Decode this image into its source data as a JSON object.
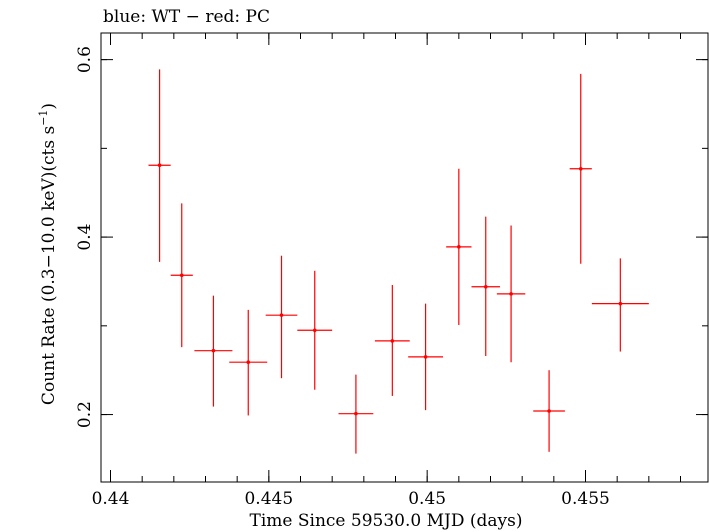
{
  "chart_data": {
    "type": "scatter",
    "title": "blue: WT − red: PC",
    "xlabel": "Time Since 59530.0 MJD (days)",
    "ylabel_main": "Count Rate (0.3−10.0 keV)(cts s",
    "ylabel_sup": "−1",
    "ylabel_close": ")",
    "xlim": [
      0.4397,
      0.4589
    ],
    "ylim": [
      0.124,
      0.63
    ],
    "x_ticks": [
      {
        "value": 0.44,
        "label": "0.44"
      },
      {
        "value": 0.445,
        "label": "0.445"
      },
      {
        "value": 0.45,
        "label": "0.45"
      },
      {
        "value": 0.455,
        "label": "0.455"
      }
    ],
    "x_minor_step": 0.001,
    "y_ticks": [
      {
        "value": 0.2,
        "label": "0.2"
      },
      {
        "value": 0.4,
        "label": "0.4"
      },
      {
        "value": 0.6,
        "label": "0.6"
      }
    ],
    "y_minor_step": 0.1,
    "grid": false,
    "series": [
      {
        "color": "#ff0000",
        "points": [
          {
            "x": 0.44155,
            "xerr": 0.00035,
            "y": 0.481,
            "ylo": 0.372,
            "yhi": 0.589
          },
          {
            "x": 0.44225,
            "xerr": 0.00035,
            "y": 0.357,
            "ylo": 0.276,
            "yhi": 0.438
          },
          {
            "x": 0.44325,
            "xerr": 0.0006,
            "y": 0.272,
            "ylo": 0.209,
            "yhi": 0.334
          },
          {
            "x": 0.44435,
            "xerr": 0.0006,
            "y": 0.259,
            "ylo": 0.199,
            "yhi": 0.318
          },
          {
            "x": 0.4454,
            "xerr": 0.0005,
            "y": 0.312,
            "ylo": 0.241,
            "yhi": 0.379
          },
          {
            "x": 0.44645,
            "xerr": 0.00055,
            "y": 0.295,
            "ylo": 0.228,
            "yhi": 0.362
          },
          {
            "x": 0.44775,
            "xerr": 0.00055,
            "y": 0.201,
            "ylo": 0.156,
            "yhi": 0.245
          },
          {
            "x": 0.4489,
            "xerr": 0.00055,
            "y": 0.283,
            "ylo": 0.221,
            "yhi": 0.346
          },
          {
            "x": 0.44995,
            "xerr": 0.00055,
            "y": 0.265,
            "ylo": 0.205,
            "yhi": 0.325
          },
          {
            "x": 0.451,
            "xerr": 0.0004,
            "y": 0.389,
            "ylo": 0.301,
            "yhi": 0.477
          },
          {
            "x": 0.45185,
            "xerr": 0.00045,
            "y": 0.344,
            "ylo": 0.266,
            "yhi": 0.423
          },
          {
            "x": 0.45265,
            "xerr": 0.00045,
            "y": 0.336,
            "ylo": 0.259,
            "yhi": 0.413
          },
          {
            "x": 0.45385,
            "xerr": 0.0005,
            "y": 0.204,
            "ylo": 0.158,
            "yhi": 0.25
          },
          {
            "x": 0.45485,
            "xerr": 0.00035,
            "y": 0.477,
            "ylo": 0.37,
            "yhi": 0.584
          },
          {
            "x": 0.4561,
            "xerr": 0.0009,
            "y": 0.325,
            "ylo": 0.271,
            "yhi": 0.376
          }
        ]
      }
    ]
  }
}
